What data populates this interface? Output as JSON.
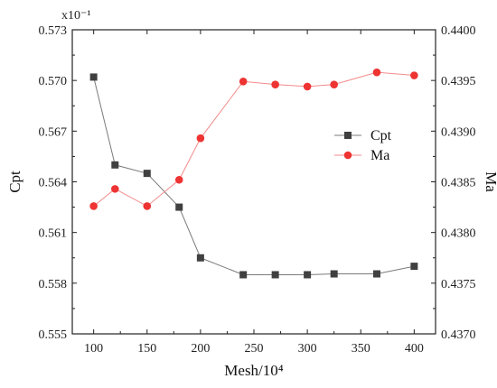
{
  "chart_data": {
    "type": "line",
    "title": "",
    "xlabel": "Mesh/10⁴",
    "ylabel_left": "Cpt",
    "ylabel_right": "Ma",
    "left_multiplier": "x10⁻¹",
    "xlim": [
      80,
      420
    ],
    "x_ticks": [
      100,
      150,
      200,
      250,
      300,
      350,
      400
    ],
    "ylim_left": [
      0.555,
      0.573
    ],
    "y_ticks_left": [
      "0.555",
      "0.558",
      "0.561",
      "0.564",
      "0.567",
      "0.570",
      "0.573"
    ],
    "ylim_right": [
      0.437,
      0.44
    ],
    "y_ticks_right": [
      "0.4370",
      "0.4375",
      "0.4380",
      "0.4385",
      "0.4390",
      "0.4395",
      "0.4400"
    ],
    "legend_position": "right-upper",
    "x": [
      100,
      120,
      150,
      180,
      200,
      240,
      270,
      300,
      325,
      365,
      400
    ],
    "series": [
      {
        "name": "Cpt",
        "axis": "left",
        "marker": "square",
        "color": "#404040",
        "line_color": "#7a7a7a",
        "values": [
          0.5702,
          0.565,
          0.5645,
          0.5625,
          0.5595,
          0.5585,
          0.5585,
          0.5585,
          0.55855,
          0.55855,
          0.559
        ]
      },
      {
        "name": "Ma",
        "axis": "right",
        "marker": "circle",
        "color": "#ee3333",
        "line_color": "#f28b8b",
        "values": [
          0.43826,
          0.43843,
          0.43826,
          0.43852,
          0.43893,
          0.43949,
          0.43946,
          0.43944,
          0.43946,
          0.43958,
          0.43955
        ]
      }
    ]
  }
}
